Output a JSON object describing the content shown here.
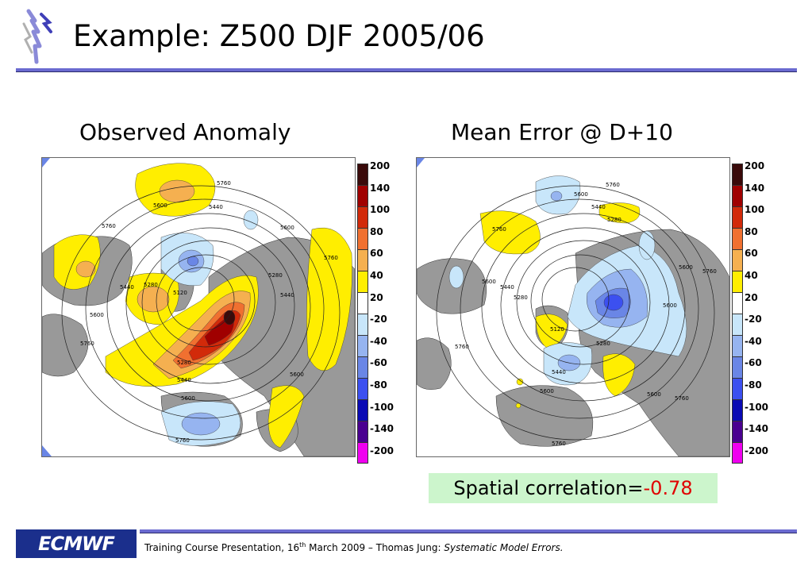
{
  "slide": {
    "title": "Example: Z500 DJF 2005/06"
  },
  "panels": [
    {
      "title": "Observed Anomaly"
    },
    {
      "title": "Mean Error @ D+10"
    }
  ],
  "colorbar": {
    "labels": [
      "200",
      "140",
      "100",
      "80",
      "60",
      "40",
      "20",
      "-20",
      "-40",
      "-60",
      "-80",
      "-100",
      "-140",
      "-200"
    ],
    "colors": [
      "#3a0a0a",
      "#a00000",
      "#d22a0a",
      "#f07030",
      "#f5b050",
      "#ffee00",
      "#ffffff",
      "#c8e6fa",
      "#96b4f0",
      "#6a86e6",
      "#3c50f0",
      "#0a0ab4",
      "#4a0090",
      "#f000f0"
    ]
  },
  "contour_labels": {
    "left": [
      "5760",
      "5600",
      "5440",
      "5760",
      "5600",
      "5440",
      "5280",
      "5120",
      "5600",
      "5760",
      "5280",
      "5440",
      "5600",
      "5760",
      "5280",
      "5440",
      "5600",
      "5760"
    ],
    "right": [
      "5760",
      "5600",
      "5440",
      "5280",
      "5760",
      "5600",
      "5440",
      "5280",
      "5120",
      "5600",
      "5760",
      "5600",
      "5760",
      "5280",
      "5440",
      "5600",
      "5760",
      "5600",
      "5760"
    ]
  },
  "correlation": {
    "label": "Spatial correlation=",
    "value": "-0.78"
  },
  "footer": {
    "org": "ECMWF",
    "text_prefix": "Training Course Presentation, 16",
    "text_sup": "th",
    "text_mid": " March 2009 – Thomas Jung: ",
    "text_italic": "Systematic Model Errors."
  },
  "colors": {
    "land": "#999999",
    "rule": "#6a6ad0",
    "logo_bg": "#1b2f8c",
    "corr_bg": "#ccf5cc",
    "corr_value": "#e00000"
  }
}
